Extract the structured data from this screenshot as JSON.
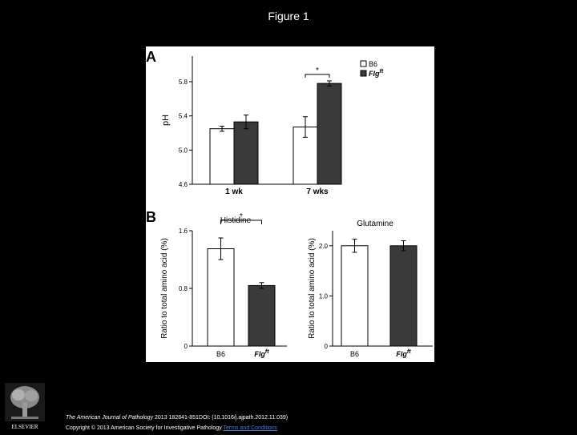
{
  "page": {
    "title": "Figure 1"
  },
  "figure": {
    "panel_a_letter": "A",
    "panel_b_letter": "B",
    "significance_marker": "*",
    "colors": {
      "b6": "#ffffff",
      "flgft": "#3a3a3a",
      "outline": "#000000"
    }
  },
  "chart_data": [
    {
      "type": "bar",
      "panel": "A",
      "categories": [
        "1 wk",
        "7 wks"
      ],
      "series": [
        {
          "name": "B6",
          "values": [
            5.25,
            5.27
          ],
          "errors": [
            0.03,
            0.12
          ]
        },
        {
          "name": "Flg",
          "name_superscript": "ft",
          "values": [
            5.33,
            5.78
          ],
          "errors": [
            0.08,
            0.03
          ]
        }
      ],
      "ylabel": "pH",
      "ylim": [
        4.6,
        6.1
      ],
      "yticks": [
        "4.6",
        "5.0",
        "5.4",
        "5.8"
      ],
      "ytick_values": [
        4.6,
        5.0,
        5.4,
        5.8
      ],
      "significance": "7 wks",
      "legend_placement": "top-right"
    },
    {
      "type": "bar",
      "panel": "B",
      "title": "Histidine",
      "categories": [
        "B6",
        "Flg"
      ],
      "category_superscripts": [
        "",
        "ft"
      ],
      "values": [
        1.35,
        0.84
      ],
      "errors": [
        0.15,
        0.04
      ],
      "ylabel": "Ratio to total amino acid (%)",
      "ylim": [
        0,
        1.6
      ],
      "yticks": [
        "0",
        "0.8",
        "1.6"
      ],
      "ytick_values": [
        0,
        0.8,
        1.6
      ],
      "significance": "B6 vs Flgft"
    },
    {
      "type": "bar",
      "panel": "B",
      "title": "Glutamine",
      "categories": [
        "B6",
        "Flg"
      ],
      "category_superscripts": [
        "",
        "ft"
      ],
      "values": [
        2.0,
        2.0
      ],
      "errors": [
        0.13,
        0.1
      ],
      "ylabel": "Ratio to total amino acid (%)",
      "ylim": [
        0,
        2.3
      ],
      "yticks": [
        "0",
        "1.0",
        "2.0"
      ],
      "ytick_values": [
        0,
        1.0,
        2.0
      ]
    }
  ],
  "footer": {
    "journal": "The American Journal of Pathology",
    "citation": " 2013 182841-851DOI: (10.1016/j.ajpath.2012.11.039)",
    "copyright": "Copyright © 2013 American Society for Investigative Pathology ",
    "link": "Terms and Conditions"
  },
  "logo": {
    "text": "ELSEVIER",
    "icon": "elsevier-tree-icon"
  }
}
